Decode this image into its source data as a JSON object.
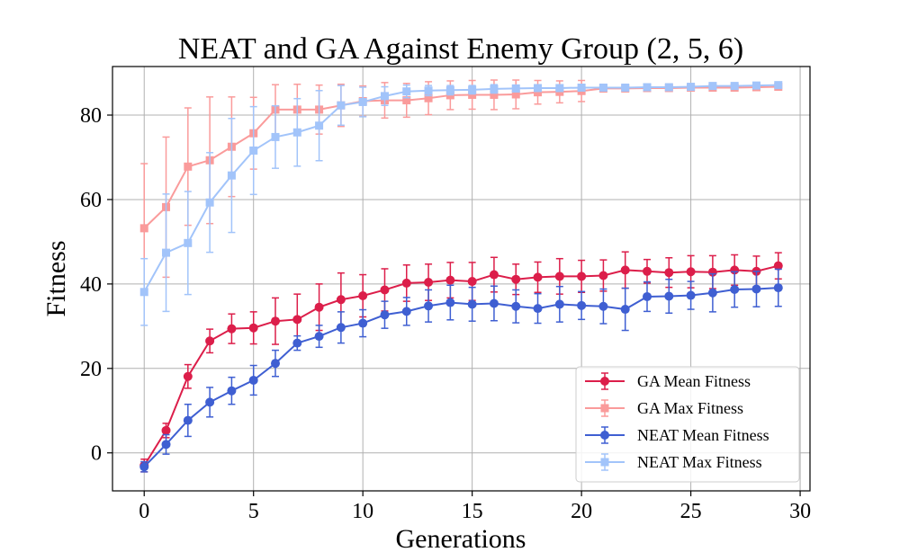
{
  "chart_data": {
    "type": "line",
    "title": "NEAT and GA Against Enemy Group (2, 5, 6)",
    "xlabel": "Generations",
    "ylabel": "Fitness",
    "xlim": [
      -1.45,
      30.45
    ],
    "ylim": [
      -9,
      91.5
    ],
    "xticks": [
      0,
      5,
      10,
      15,
      20,
      25,
      30
    ],
    "yticks": [
      0,
      20,
      40,
      60,
      80
    ],
    "grid": true,
    "legend_position": "lower-right",
    "x": [
      0,
      1,
      2,
      3,
      4,
      5,
      6,
      7,
      8,
      9,
      10,
      11,
      12,
      13,
      14,
      15,
      16,
      17,
      18,
      19,
      20,
      21,
      22,
      23,
      24,
      25,
      26,
      27,
      28,
      29
    ],
    "series": [
      {
        "name": "GA Mean Fitness",
        "color": "#dc1e4a",
        "marker": "circle",
        "values": [
          -3,
          5.3,
          18.1,
          26.5,
          29.4,
          29.6,
          31.2,
          31.6,
          34.5,
          36.3,
          37.2,
          38.6,
          40.2,
          40.4,
          40.9,
          40.6,
          42.2,
          41.1,
          41.6,
          41.8,
          41.8,
          42.0,
          43.3,
          43.0,
          42.7,
          42.9,
          42.8,
          43.3,
          43.0,
          44.3
        ],
        "errors": [
          1.5,
          1.7,
          2.8,
          2.8,
          3.5,
          3.8,
          5.5,
          6.0,
          5.5,
          6.3,
          5.0,
          5.0,
          4.3,
          4.3,
          4.2,
          4.5,
          4.1,
          3.6,
          3.6,
          4.2,
          3.8,
          3.7,
          4.3,
          2.8,
          3.5,
          3.8,
          3.9,
          3.6,
          3.6,
          3.1
        ]
      },
      {
        "name": "GA Max Fitness",
        "color": "#fa9b9b",
        "marker": "square",
        "values": [
          53.2,
          58.2,
          67.8,
          69.3,
          72.5,
          75.7,
          81.3,
          81.3,
          81.3,
          82.3,
          83.3,
          83.5,
          83.5,
          84.0,
          84.7,
          84.8,
          84.8,
          84.9,
          85.4,
          85.5,
          85.7,
          86.3,
          86.3,
          86.4,
          86.4,
          86.5,
          86.5,
          86.5,
          86.6,
          86.7
        ],
        "errors": [
          15.3,
          16.6,
          13.9,
          15.0,
          11.8,
          8.5,
          5.9,
          6.0,
          5.8,
          5.0,
          3.6,
          4.2,
          4.0,
          3.9,
          3.4,
          3.4,
          3.5,
          3.4,
          2.8,
          2.6,
          2.5,
          0.8,
          0.6,
          0.5,
          0.4,
          0.5,
          0.5,
          0.4,
          0.5,
          0.6
        ]
      },
      {
        "name": "NEAT Mean Fitness",
        "color": "#3f5fd2",
        "marker": "circle",
        "values": [
          -3.3,
          2.0,
          7.7,
          12.0,
          14.7,
          17.2,
          21.2,
          26.0,
          27.6,
          29.7,
          30.7,
          32.7,
          33.5,
          34.8,
          35.6,
          35.2,
          35.4,
          34.7,
          34.2,
          35.2,
          34.9,
          34.7,
          34.0,
          37.0,
          37.1,
          37.3,
          37.9,
          38.7,
          38.8,
          39.1
        ],
        "errors": [
          1.2,
          2.3,
          3.8,
          3.5,
          3.2,
          3.5,
          3.1,
          1.7,
          2.6,
          3.7,
          3.2,
          3.2,
          3.3,
          3.8,
          4.1,
          4.0,
          4.1,
          3.9,
          3.5,
          4.2,
          3.3,
          4.1,
          5.0,
          3.5,
          4.0,
          3.3,
          4.5,
          4.2,
          4.2,
          4.4
        ]
      },
      {
        "name": "NEAT Max Fitness",
        "color": "#a2c4fa",
        "marker": "square",
        "values": [
          38.1,
          47.4,
          49.7,
          59.3,
          65.7,
          71.6,
          74.8,
          75.9,
          77.5,
          82.3,
          83.1,
          84.5,
          85.6,
          85.8,
          85.9,
          86.0,
          86.2,
          86.3,
          86.4,
          86.4,
          86.5,
          86.5,
          86.5,
          86.6,
          86.6,
          86.7,
          86.9,
          86.9,
          87.0,
          87.1
        ],
        "errors": [
          7.9,
          13.9,
          12.2,
          11.8,
          13.5,
          10.4,
          7.4,
          8.0,
          8.3,
          4.7,
          3.5,
          2.2,
          1.5,
          1.2,
          1.1,
          1.0,
          1.0,
          0.8,
          0.6,
          0.6,
          0.6,
          0.5,
          0.5,
          0.4,
          0.4,
          0.4,
          0.4,
          0.4,
          0.4,
          0.4
        ]
      }
    ]
  }
}
